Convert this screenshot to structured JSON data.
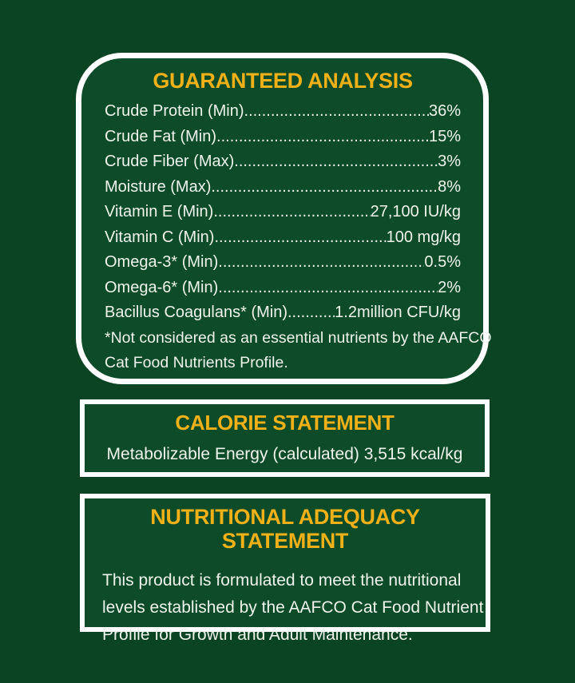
{
  "colors": {
    "background": "#0b4423",
    "panel_green": "#0e4c29",
    "heading_yellow": "#f0b018",
    "text_white": "#eef3ec",
    "border_white": "#ffffff"
  },
  "guaranteed_analysis": {
    "title": "GUARANTEED ANALYSIS",
    "rows": [
      {
        "label": "Crude Protein (Min)",
        "value": "36%"
      },
      {
        "label": "Crude Fat (Min)",
        "value": "15%"
      },
      {
        "label": "Crude Fiber (Max)",
        "value": "3%"
      },
      {
        "label": "Moisture (Max)",
        "value": "8%"
      },
      {
        "label": "Vitamin E (Min)",
        "value": "27,100 IU/kg"
      },
      {
        "label": "Vitamin C (Min)",
        "value": "100 mg/kg"
      },
      {
        "label": "Omega-3* (Min)",
        "value": "0.5%"
      },
      {
        "label": "Omega-6* (Min)",
        "value": "2%"
      },
      {
        "label": "Bacillus Coagulans* (Min)",
        "value": "1.2million CFU/kg"
      }
    ],
    "footnote_lines": [
      "*Not considered as an essential nutrients by the AAFCO",
      "Cat Food Nutrients Profile."
    ]
  },
  "calorie_statement": {
    "title": "CALORIE STATEMENT",
    "body": "Metabolizable Energy (calculated) 3,515 kcal/kg"
  },
  "nutritional_adequacy": {
    "title": "NUTRITIONAL ADEQUACY STATEMENT",
    "body_lines": [
      "This product is formulated to meet the nutritional",
      "levels established by the AAFCO Cat Food Nutrient",
      "Profile for Growth and Adult Maintenance."
    ]
  }
}
